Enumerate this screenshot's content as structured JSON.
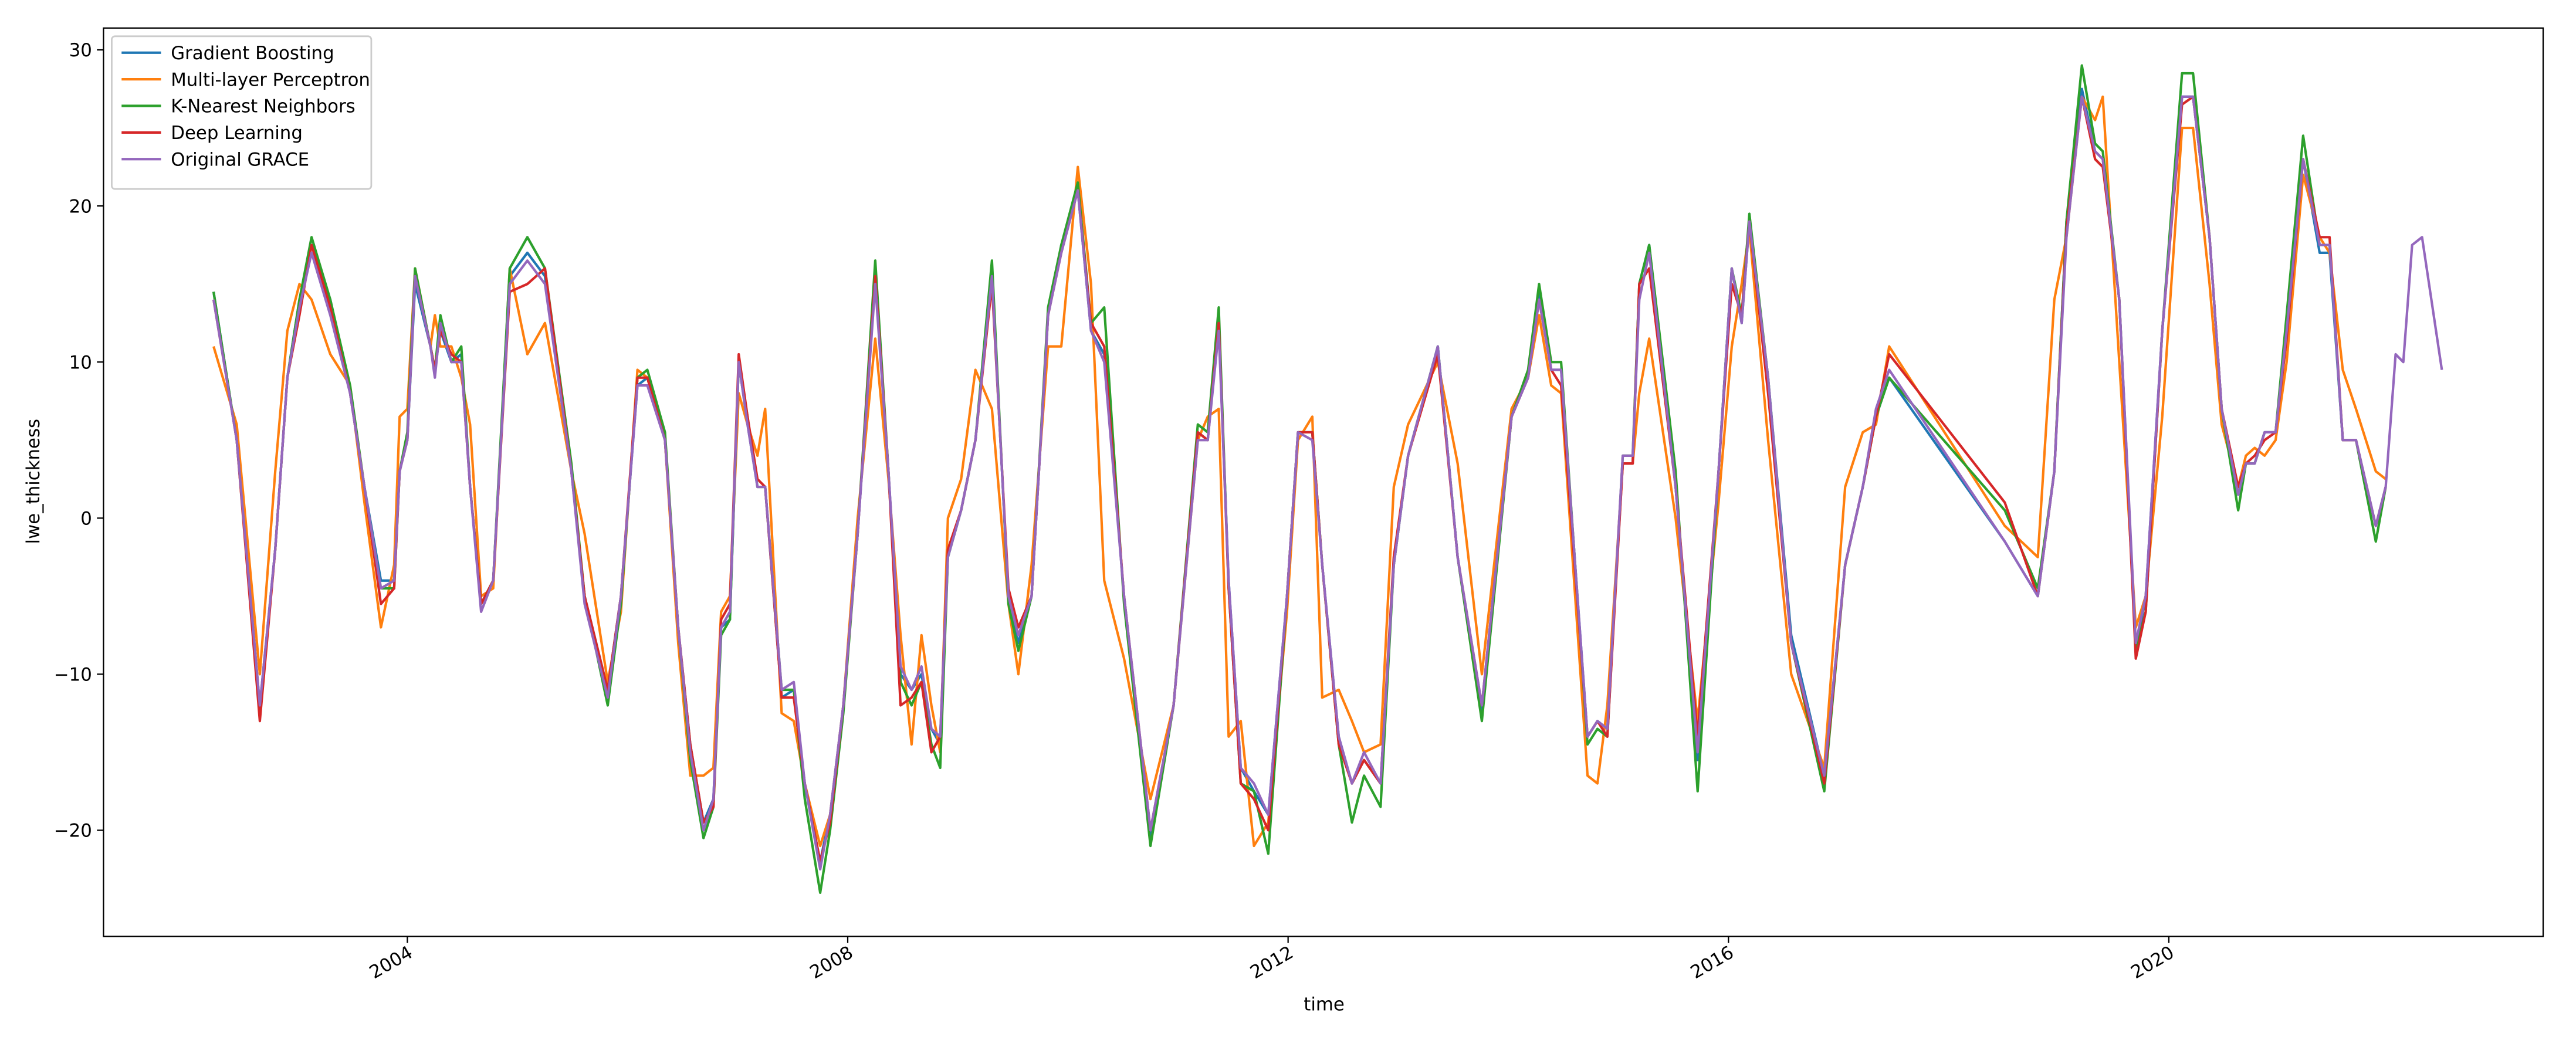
{
  "chart_data": {
    "type": "line",
    "xlabel": "time",
    "ylabel": "lwe_thickness",
    "xlim": [
      2001.24,
      2023.4
    ],
    "xticks": [
      2004,
      2008,
      2012,
      2016,
      2020
    ],
    "ylim": [
      -26.8,
      31.4
    ],
    "yticks": [
      {
        "value": -20,
        "label": "−20"
      },
      {
        "value": -10,
        "label": "−10"
      },
      0,
      10,
      20,
      30
    ],
    "grid": false,
    "legend": "upper left",
    "x": [
      2002.24,
      2002.45,
      2002.66,
      2002.8,
      2002.91,
      2003.02,
      2003.13,
      2003.3,
      2003.48,
      2003.61,
      2003.76,
      2003.88,
      2003.93,
      2004.0,
      2004.07,
      2004.21,
      2004.25,
      2004.3,
      2004.4,
      2004.49,
      2004.57,
      2004.67,
      2004.78,
      2004.93,
      2005.09,
      2005.25,
      2005.49,
      2005.61,
      2005.82,
      2005.94,
      2006.09,
      2006.18,
      2006.34,
      2006.46,
      2006.57,
      2006.69,
      2006.78,
      2006.85,
      2006.93,
      2007.01,
      2007.09,
      2007.18,
      2007.25,
      2007.4,
      2007.51,
      2007.61,
      2007.75,
      2007.84,
      2007.96,
      2008.09,
      2008.25,
      2008.37,
      2008.48,
      2008.58,
      2008.67,
      2008.76,
      2008.84,
      2008.91,
      2009.03,
      2009.16,
      2009.31,
      2009.46,
      2009.55,
      2009.67,
      2009.82,
      2009.94,
      2010.09,
      2010.21,
      2010.33,
      2010.51,
      2010.75,
      2010.96,
      2011.18,
      2011.27,
      2011.37,
      2011.46,
      2011.57,
      2011.69,
      2011.82,
      2011.99,
      2012.09,
      2012.22,
      2012.31,
      2012.46,
      2012.58,
      2012.69,
      2012.84,
      2012.96,
      2013.09,
      2013.36,
      2013.54,
      2013.76,
      2014.03,
      2014.18,
      2014.28,
      2014.39,
      2014.48,
      2014.72,
      2014.81,
      2014.9,
      2015.04,
      2015.13,
      2015.19,
      2015.28,
      2015.52,
      2015.72,
      2015.91,
      2016.03,
      2016.12,
      2016.19,
      2016.36,
      2016.57,
      2016.87,
      2017.06,
      2017.22,
      2017.34,
      2017.46,
      2018.51,
      2018.81,
      2018.96,
      2019.07,
      2019.21,
      2019.33,
      2019.4,
      2019.55,
      2019.7,
      2019.79,
      2019.94,
      2020.12,
      2020.22,
      2020.37,
      2020.48,
      2020.63,
      2020.7,
      2020.78,
      2020.87,
      2020.97,
      2021.07,
      2021.22,
      2021.37,
      2021.46,
      2021.58,
      2021.7,
      2021.88,
      2021.97,
      2022.06,
      2022.13,
      2022.21,
      2022.3,
      2022.48
    ],
    "series": [
      {
        "name": "Gradient Boosting",
        "color": "#1f77b4",
        "values": [
          14.5,
          5,
          -12,
          -2,
          9,
          14,
          17.5,
          14,
          8,
          2,
          -4,
          -4,
          3,
          5,
          15,
          11,
          9.5,
          12,
          10,
          10.5,
          2,
          -5.5,
          -4,
          15.5,
          17,
          15.5,
          3,
          -5,
          -11,
          -5,
          8.5,
          9,
          5,
          -7,
          -14.5,
          -19.5,
          -18,
          -7,
          -6.5,
          10,
          6,
          2,
          2,
          -11.5,
          -11,
          -17,
          -22,
          -19,
          -12,
          -1,
          15.5,
          3,
          -10,
          -11,
          -10,
          -13.5,
          -14.5,
          -2.5,
          0.5,
          5,
          15.5,
          -5,
          -8,
          -5,
          13,
          17.5,
          21,
          12,
          10.5,
          -5,
          -20.5,
          -12,
          5.5,
          5,
          12.5,
          -4,
          -16,
          -17.5,
          -19,
          -5,
          5.5,
          5.5,
          -3,
          -14,
          -17,
          -15.5,
          -17,
          -3,
          4,
          11,
          -2.5,
          -12.5,
          6.5,
          9,
          14.5,
          9.5,
          9.5,
          -14,
          -13,
          -13.5,
          3.5,
          3.5,
          15,
          17.5,
          2,
          -15.5,
          3,
          16,
          12.5,
          19,
          9,
          -7.5,
          -16.5,
          -3,
          2,
          6.5,
          9,
          -1.5,
          -5,
          3,
          19,
          27.5,
          23.5,
          23,
          14,
          -8.5,
          -5,
          12,
          27,
          27,
          18,
          7,
          1.5,
          3.5,
          3.5,
          5.5,
          5.5,
          12.5,
          23,
          17,
          17,
          5,
          5,
          -0.5,
          2,
          null,
          null,
          null,
          null,
          null
        ]
      },
      {
        "name": "Multi-layer Perceptron",
        "color": "#ff7f0e",
        "values": [
          11,
          6,
          -10,
          3,
          12,
          15,
          14,
          10.5,
          8.5,
          1,
          -7,
          -3,
          6.5,
          7,
          16,
          11,
          13,
          11,
          11,
          9,
          6,
          -5,
          -4.5,
          16,
          10.5,
          12.5,
          3,
          -1,
          -10.5,
          -6,
          9.5,
          9,
          5,
          -8,
          -16.5,
          -16.5,
          -16,
          -6,
          -5,
          8,
          6,
          4,
          7,
          -12.5,
          -13,
          -17,
          -21,
          -19,
          -12,
          0,
          11.5,
          2.5,
          -7.5,
          -14.5,
          -7.5,
          -12,
          -15,
          0,
          2.5,
          9.5,
          7,
          -5.5,
          -10,
          -3,
          11,
          11,
          22.5,
          15,
          -4,
          -9,
          -18,
          -12,
          5,
          6.5,
          7,
          -14,
          -13,
          -21,
          -19.5,
          -6,
          5,
          6.5,
          -11.5,
          -11,
          -13,
          -15,
          -14.5,
          2,
          6,
          10,
          3.5,
          -10,
          7,
          9,
          13,
          8.5,
          8,
          -16.5,
          -17,
          -12,
          3.5,
          3.5,
          8,
          11.5,
          0,
          -13,
          1,
          11,
          15,
          18.5,
          5,
          -10,
          -16,
          2,
          5.5,
          6,
          11,
          -0.5,
          -2.5,
          14,
          18,
          27,
          25.5,
          27,
          10,
          -7,
          -5,
          6.5,
          25,
          25,
          15,
          6,
          2,
          4,
          4.5,
          4,
          5,
          10,
          22,
          18,
          17,
          9.5,
          7,
          3,
          2.5,
          null,
          null,
          null,
          null,
          null
        ]
      },
      {
        "name": "K-Nearest Neighbors",
        "color": "#2ca02c",
        "values": [
          14.5,
          5,
          -12.5,
          -2,
          9,
          14,
          18,
          14,
          8.5,
          2,
          -4.5,
          -4.5,
          3,
          5.5,
          16,
          11,
          9.5,
          13,
          10,
          11,
          2,
          -5.5,
          -4,
          16,
          18,
          16,
          3.5,
          -5,
          -12,
          -5.5,
          9,
          9.5,
          5.5,
          -7,
          -15.5,
          -20.5,
          -18.5,
          -7.5,
          -6.5,
          10,
          6.5,
          2,
          2,
          -11,
          -11,
          -18,
          -24,
          -20,
          -12.5,
          -1,
          16.5,
          3,
          -10.5,
          -12,
          -10.5,
          -14.5,
          -16,
          -2.5,
          0.5,
          5,
          16.5,
          -5.5,
          -8.5,
          -5,
          13.5,
          17.5,
          21.5,
          12.5,
          13.5,
          -5.5,
          -21,
          -12,
          6,
          5.5,
          13.5,
          -4.5,
          -17,
          -17.5,
          -21.5,
          -5,
          5.5,
          5.5,
          -3,
          -14.5,
          -19.5,
          -16.5,
          -18.5,
          -3,
          4,
          11,
          -2.5,
          -13,
          6.5,
          9.5,
          15,
          10,
          10,
          -14.5,
          -13.5,
          -14,
          4,
          4,
          15,
          17.5,
          3,
          -17.5,
          3,
          16,
          13,
          19.5,
          9,
          -8,
          -17.5,
          -3,
          2,
          6.5,
          9,
          0.5,
          -4.5,
          3,
          19,
          29,
          24,
          23.5,
          14,
          -8.5,
          -6,
          12,
          28.5,
          28.5,
          18,
          7,
          0.5,
          3.5,
          3.5,
          5.5,
          5.5,
          13,
          24.5,
          17.5,
          17.5,
          5,
          5,
          -1.5,
          2,
          null,
          null,
          null,
          null,
          null
        ]
      },
      {
        "name": "Deep Learning",
        "color": "#d62728",
        "values": [
          14,
          5,
          -13,
          -2,
          9,
          13,
          17.5,
          13.5,
          8,
          2,
          -5.5,
          -4.5,
          3,
          5,
          15.5,
          11,
          9.5,
          12,
          10.5,
          10,
          2,
          -5.5,
          -4,
          14.5,
          15,
          16,
          3,
          -5,
          -11,
          -5,
          9,
          9,
          5,
          -7,
          -14.5,
          -19.5,
          -18.5,
          -6.5,
          -5.5,
          10.5,
          6.5,
          2.5,
          2,
          -11.5,
          -11.5,
          -17,
          -22,
          -19.5,
          -12,
          -1,
          15.5,
          3,
          -12,
          -11.5,
          -10.5,
          -15,
          -14,
          -2,
          0.5,
          5,
          15,
          -4.5,
          -7,
          -5,
          13,
          17,
          21,
          12.5,
          11,
          -5,
          -20,
          -12,
          5.5,
          5,
          12.5,
          -4.5,
          -17,
          -18,
          -20,
          -5,
          5.5,
          5.5,
          -3,
          -14.5,
          -17,
          -15.5,
          -17,
          -2.5,
          4,
          10.5,
          -2.5,
          -12,
          6.5,
          9,
          14,
          9.5,
          8.5,
          -14,
          -13,
          -14,
          3.5,
          3.5,
          15,
          16,
          2,
          -14,
          3,
          15,
          13,
          19,
          8,
          -8,
          -17,
          -3,
          2,
          6.5,
          10.5,
          1,
          -5,
          3,
          18.5,
          27,
          23,
          22.5,
          14,
          -9,
          -6,
          12,
          26.5,
          27,
          18,
          7,
          2,
          3.5,
          4,
          5,
          5.5,
          11.5,
          23,
          18,
          18,
          5,
          5,
          -0.5,
          2,
          null,
          null,
          null,
          null,
          null
        ]
      },
      {
        "name": "Original GRACE",
        "color": "#9467bd",
        "values": [
          14,
          5,
          -12,
          -2,
          9,
          13.5,
          17,
          13,
          8,
          2,
          -4.5,
          -4,
          3,
          5,
          15.5,
          11,
          9,
          12.5,
          10,
          10,
          2,
          -6,
          -4,
          15,
          16.5,
          15,
          3,
          -5.5,
          -11.5,
          -5,
          8.5,
          8.5,
          5,
          -7,
          -15,
          -20,
          -18,
          -7,
          -6,
          10,
          6,
          2,
          2,
          -11,
          -10.5,
          -17,
          -22.5,
          -19,
          -12,
          -1,
          15,
          3,
          -9.5,
          -11,
          -9.5,
          -13.5,
          -14,
          -2.5,
          0.5,
          5,
          15.5,
          -5,
          -7.5,
          -5,
          13,
          17,
          21,
          12,
          10,
          -5,
          -20,
          -12,
          5,
          5,
          12,
          -4,
          -16,
          -17,
          -19,
          -5,
          5.5,
          5,
          -3,
          -14,
          -17,
          -15,
          -17,
          -3,
          4,
          11,
          -2.5,
          -12,
          6.5,
          9,
          14,
          9.5,
          9.5,
          -14,
          -13,
          -13.5,
          4,
          4,
          14,
          17,
          2,
          -15,
          3,
          16,
          12.5,
          19,
          9,
          -8,
          -16.5,
          -3,
          2,
          7,
          9.5,
          -1.5,
          -5,
          3,
          18,
          27,
          23.5,
          23,
          14,
          -8,
          -5,
          12,
          27,
          27,
          18,
          7,
          1.5,
          3.5,
          3.5,
          5.5,
          5.5,
          12,
          23,
          17.5,
          17.5,
          5,
          5,
          -0.5,
          2,
          10.5,
          10,
          17.5,
          18,
          9.5
        ]
      }
    ]
  }
}
